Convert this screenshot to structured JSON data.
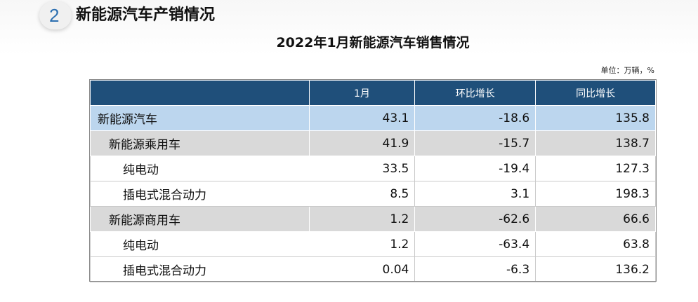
{
  "section": {
    "number": "2",
    "title": "新能源汽车产销情况"
  },
  "table": {
    "title": "2022年1月新能源汽车销售情况",
    "unit": "单位：万辆，%",
    "headers": [
      "",
      "1月",
      "环比增长",
      "同比增长"
    ],
    "rows": [
      {
        "name": "新能源汽车",
        "month": "43.1",
        "mom": "-18.6",
        "yoy": "135.8"
      },
      {
        "name": "新能源乘用车",
        "month": "41.9",
        "mom": "-15.7",
        "yoy": "138.7"
      },
      {
        "name": "纯电动",
        "month": "33.5",
        "mom": "-19.4",
        "yoy": "127.3"
      },
      {
        "name": "插电式混合动力",
        "month": "8.5",
        "mom": "3.1",
        "yoy": "198.3"
      },
      {
        "name": "新能源商用车",
        "month": "1.2",
        "mom": "-62.6",
        "yoy": "66.6"
      },
      {
        "name": "纯电动",
        "month": "1.2",
        "mom": "-63.4",
        "yoy": "63.8"
      },
      {
        "name": "插电式混合动力",
        "month": "0.04",
        "mom": "-6.3",
        "yoy": "136.2"
      }
    ]
  }
}
